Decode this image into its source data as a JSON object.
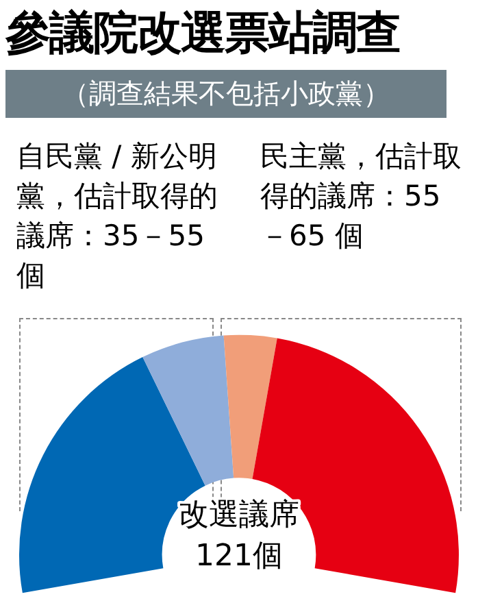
{
  "chart_data": {
    "type": "donut",
    "title": "參議院改選票站調查",
    "subtitle": "（調查結果不包括小政黨）",
    "annotations": [
      "自民黨 / 新公明黨，估計取得的議席：35－55 個",
      "民主黨，估計取得的議席：55－65 個",
      "改選議席\n121個"
    ],
    "categories": [
      null,
      null,
      null,
      null
    ],
    "values": [
      37,
      11,
      7,
      45
    ],
    "colors": [
      "#0068b4",
      "#8fadda",
      "#f19e79",
      "#e60012"
    ],
    "legend": false
  }
}
